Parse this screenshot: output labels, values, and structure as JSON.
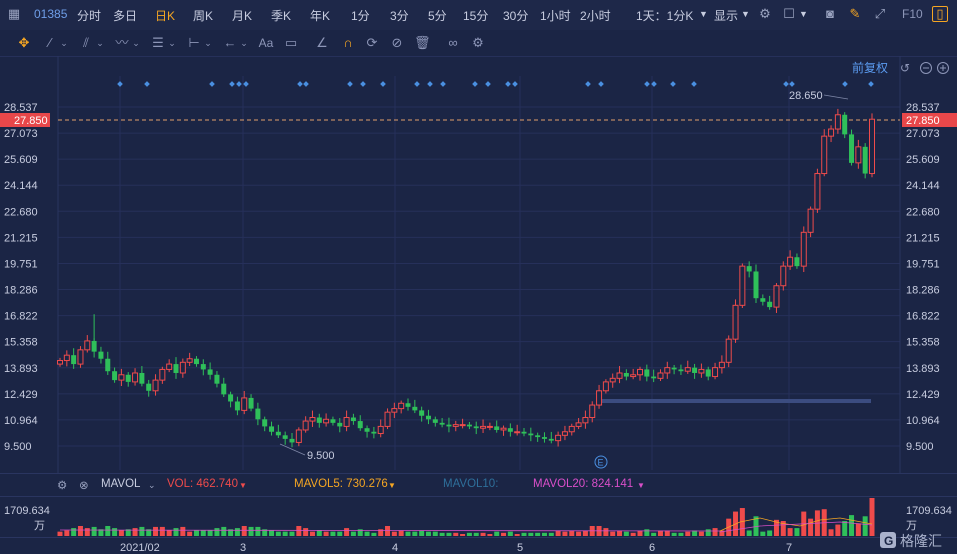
{
  "toolbar": {
    "code": "01385",
    "periods": [
      "分时",
      "多日",
      "日K",
      "周K",
      "月K",
      "季K",
      "年K",
      "1分",
      "3分",
      "5分",
      "15分",
      "30分",
      "1小时",
      "2小时"
    ],
    "active_period": "日K",
    "interval_select": "1天：1分K",
    "display_select": "显示",
    "right_label": "F10"
  },
  "drawbar": {
    "text_tool": "Aa",
    "adjust_label": "前复权"
  },
  "price_axis": {
    "ticks": [
      "28.537",
      "27.073",
      "25.609",
      "24.144",
      "22.680",
      "21.215",
      "19.751",
      "18.286",
      "16.822",
      "15.358",
      "13.893",
      "12.429",
      "10.964",
      "9.500"
    ],
    "current": "27.850",
    "high_marker": "28.650",
    "low_marker": "9.500"
  },
  "x_axis": {
    "ticks": [
      "2021/02",
      "3",
      "4",
      "5",
      "6",
      "7"
    ]
  },
  "event_marker": "E",
  "volume": {
    "indicator": "MAVOL",
    "vol": "VOL: 462.740",
    "mavol5": "MAVOL5: 730.276",
    "mavol10": "MAVOL10:",
    "mavol20": "MAVOL20: 824.141",
    "axis_max": "1709.634",
    "unit": "万"
  },
  "colors": {
    "up": "#ef4b4b",
    "down": "#2fc05a",
    "accent": "#f5a623",
    "current_price_bg": "#e8474a",
    "mavol5": "#f5a623",
    "mavol10": "#2e6f9a",
    "mavol20": "#d94fc9",
    "vol": "#ef4b4b"
  },
  "chart_data": {
    "type": "candlestick",
    "y_range": [
      9.5,
      28.537
    ],
    "close_series": [
      14.3,
      14.6,
      14.1,
      14.9,
      15.4,
      14.8,
      14.4,
      13.7,
      13.2,
      13.5,
      13.1,
      13.6,
      13.0,
      12.6,
      13.2,
      13.8,
      14.1,
      13.6,
      14.2,
      14.4,
      14.1,
      13.8,
      13.5,
      13.0,
      12.4,
      12.0,
      11.5,
      12.2,
      11.6,
      11.0,
      10.6,
      10.3,
      10.1,
      9.9,
      9.7,
      10.4,
      10.9,
      11.1,
      10.8,
      11.0,
      10.8,
      10.6,
      11.1,
      10.9,
      10.5,
      10.3,
      10.2,
      10.6,
      11.4,
      11.6,
      11.9,
      11.7,
      11.5,
      11.2,
      11.0,
      10.8,
      10.7,
      10.6,
      10.7,
      10.7,
      10.6,
      10.5,
      10.6,
      10.6,
      10.4,
      10.5,
      10.3,
      10.3,
      10.2,
      10.1,
      10.0,
      9.9,
      9.8,
      10.1,
      10.3,
      10.6,
      10.8,
      11.1,
      11.8,
      12.6,
      13.1,
      13.3,
      13.6,
      13.4,
      13.5,
      13.8,
      13.4,
      13.3,
      13.6,
      13.9,
      13.8,
      13.7,
      13.9,
      13.6,
      13.8,
      13.4,
      13.9,
      14.2,
      15.5,
      17.4,
      19.6,
      19.3,
      17.8,
      17.6,
      17.3,
      18.5,
      19.6,
      20.1,
      19.6,
      21.5,
      22.8,
      24.8,
      26.9,
      27.3,
      28.1,
      27.0,
      25.4,
      26.3,
      24.8,
      27.85
    ]
  }
}
